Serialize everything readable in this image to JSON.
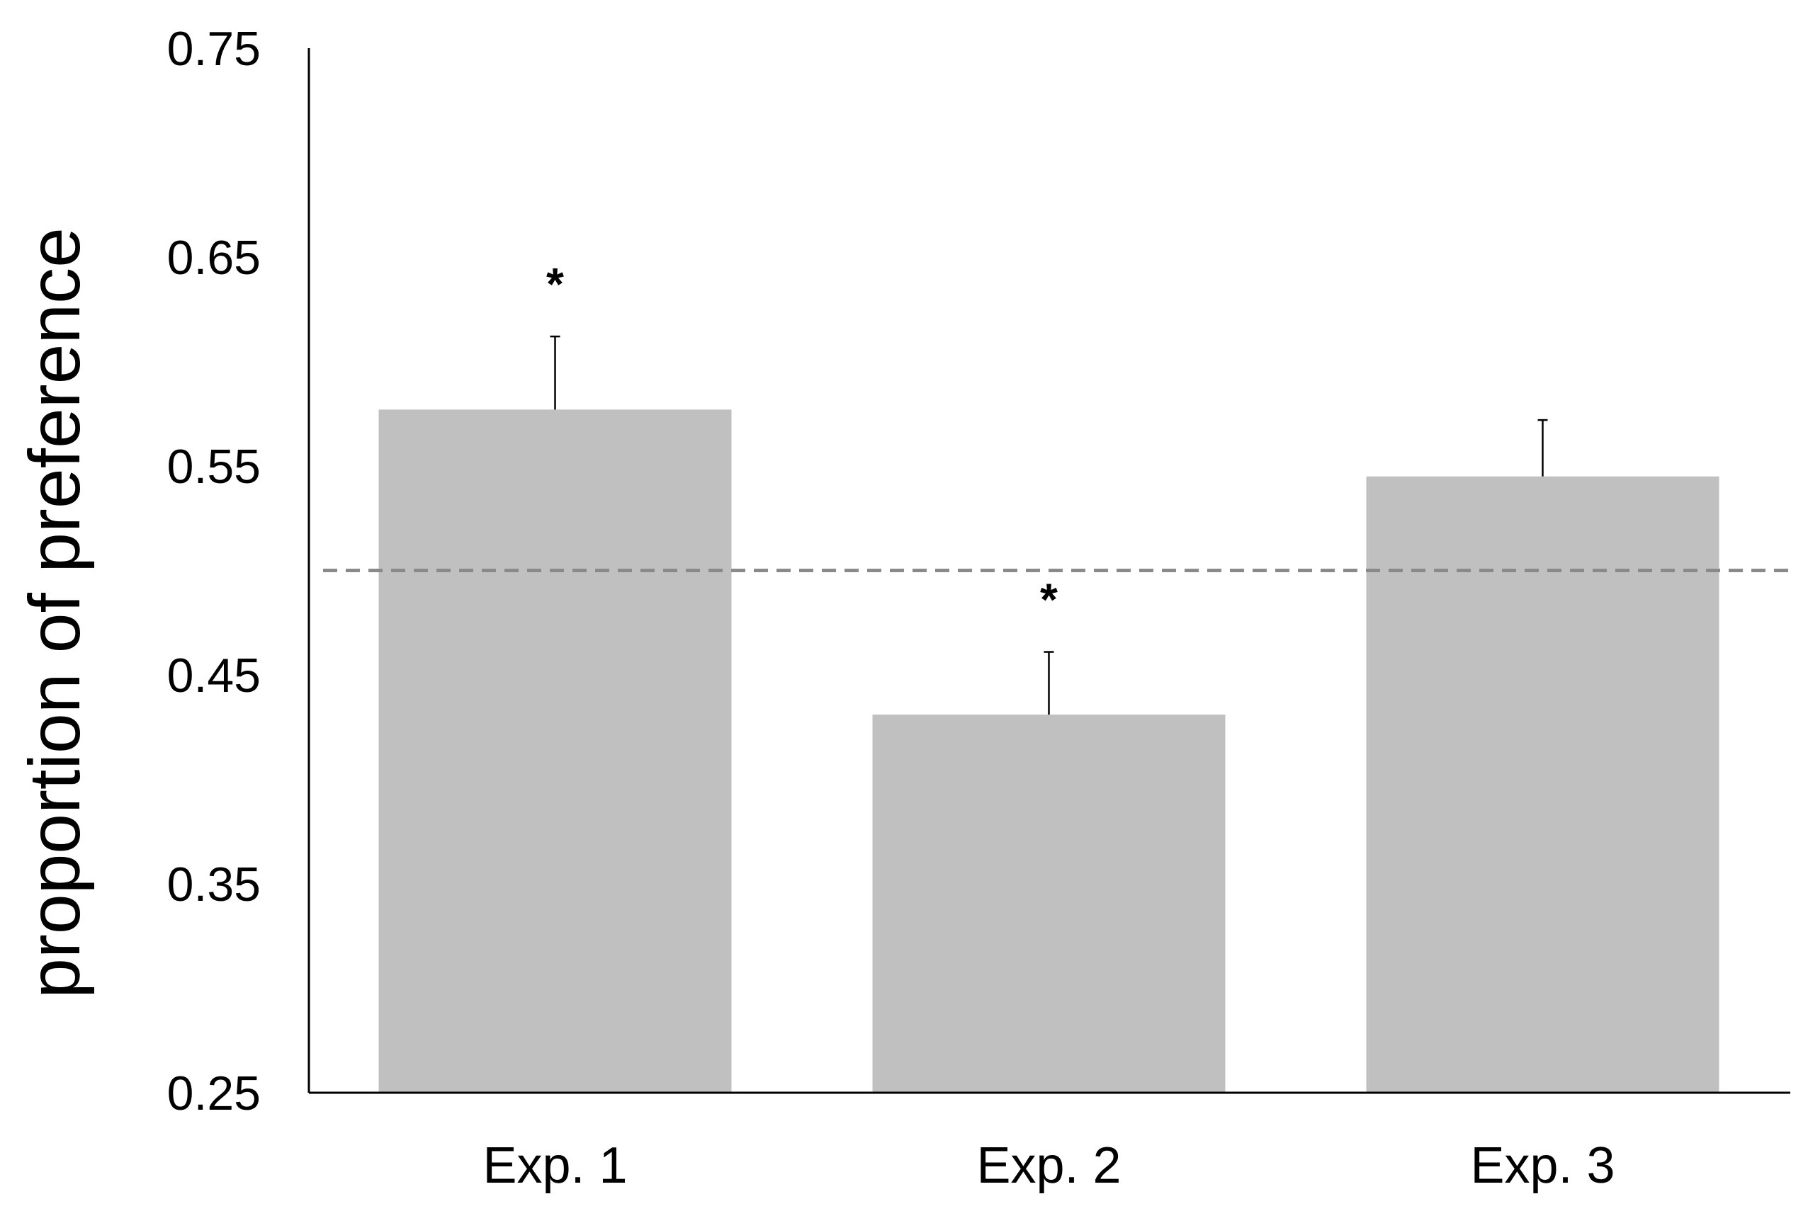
{
  "chart_data": {
    "type": "bar",
    "title": "",
    "xlabel": "",
    "ylabel": "proportion of preference",
    "categories": [
      "Exp. 1",
      "Exp. 2",
      "Exp. 3"
    ],
    "values": [
      0.577,
      0.431,
      0.545
    ],
    "error_upper": [
      0.612,
      0.461,
      0.572
    ],
    "significance": [
      "*",
      "*",
      ""
    ],
    "reference_line": 0.5,
    "ylim": [
      0.25,
      0.75
    ],
    "yticks": [
      "0.25",
      "0.35",
      "0.45",
      "0.55",
      "0.65",
      "0.75"
    ],
    "grid": false,
    "legend": "none",
    "bar_color": "#c0c0c0",
    "reference_line_color": "#8a8a8a",
    "axis_color": "#000000"
  }
}
